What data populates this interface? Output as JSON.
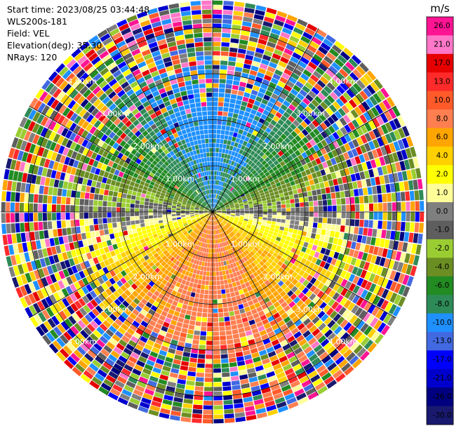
{
  "header": {
    "start_time": "Start time: 2023/08/25 03:44:48",
    "instrument": "WLS200s-181",
    "field": "Field: VEL",
    "elevation": "Elevation(deg): 35.30",
    "nrays": "NRays: 120"
  },
  "chart_data": {
    "type": "heatmap",
    "projection": "polar-ppi",
    "nrays": 120,
    "range_rings_km": [
      1.0,
      2.0,
      3.0,
      4.0
    ],
    "ring_labels": [
      "1.00km",
      "2.00km",
      "3.00km",
      "4.00km"
    ],
    "spoke_angles_deg": [
      0,
      30,
      60,
      90,
      120,
      150,
      180,
      210,
      240,
      270,
      300,
      330
    ],
    "colorbar": {
      "unit": "m/s",
      "ticks": [
        "26.0",
        "21.0",
        "17.0",
        "13.0",
        "10.0",
        "8.0",
        "6.0",
        "4.0",
        "2.0",
        "1.0",
        "0.0",
        "-1.0",
        "-2.0",
        "-4.0",
        "-6.0",
        "-8.0",
        "-10.0",
        "-13.0",
        "-17.0",
        "-21.0",
        "-26.0",
        "-30.0"
      ],
      "colors": [
        "#ff1493",
        "#ff77c8",
        "#e60000",
        "#ff2a2a",
        "#ff5a2a",
        "#ff7f50",
        "#ffa500",
        "#ffd000",
        "#ffff00",
        "#ffff99",
        "#7f7f7f",
        "#5e5e5e",
        "#9acd32",
        "#6b8e23",
        "#228b22",
        "#2e8b57",
        "#1e90ff",
        "#4169e1",
        "#0000ff",
        "#0000cd",
        "#000080",
        "#191970"
      ]
    },
    "range_max_km": 4.6
  }
}
